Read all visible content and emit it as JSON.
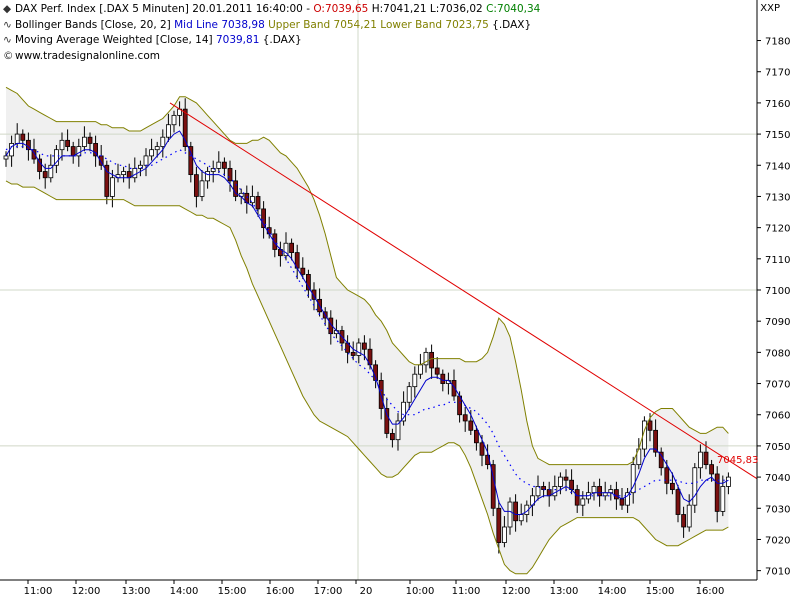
{
  "legend": {
    "line1": {
      "symbol": "◆",
      "name": "DAX Perf. Index [.DAX  5 Minuten]",
      "datetime": "20.01.2011 16:40:00",
      "open": "O:7039,65",
      "high": "H:7041,21",
      "low": "L:7036,02",
      "close": "C:7040,34"
    },
    "line2": {
      "symbol": "∿",
      "name": "Bollinger Bands [Close, 20, 2]",
      "mid": "Mid Line 7038,98",
      "upper": "Upper Band 7054,21",
      "lower": "Lower Band 7023,75",
      "suffix": "{.DAX}"
    },
    "line3": {
      "symbol": "∿",
      "name": "Moving Average Weighted [Close, 14]",
      "value": "7039,81",
      "suffix": "{.DAX}"
    },
    "line4": {
      "symbol": "©",
      "text": "www.tradesignalonline.com"
    }
  },
  "corner_label": "XXP",
  "colors": {
    "up_candle": "#ffffff",
    "down_candle": "#7a1010",
    "band": "#808000",
    "band_fill": "#f0f0f0",
    "wma": "#0000cc",
    "mid_line": "#0000ff",
    "trendline": "#e00000",
    "grid": "#d0d8c8",
    "open_red": "#cc0000",
    "close_green": "#008000"
  },
  "chart_data": {
    "type": "candlestick",
    "ylim": [
      7007,
      7193
    ],
    "y_ticks": [
      7010,
      7020,
      7030,
      7040,
      7050,
      7060,
      7070,
      7080,
      7090,
      7100,
      7110,
      7120,
      7130,
      7140,
      7150,
      7160,
      7170,
      7180
    ],
    "x_ticks": [
      "11:00",
      "12:00",
      "13:00",
      "14:00",
      "15:00",
      "16:00",
      "17:00",
      "20",
      "10:00",
      "11:00",
      "12:00",
      "13:00",
      "14:00",
      "15:00",
      "16:00"
    ],
    "trendline": [
      [
        7160,
        7039.5
      ]
    ],
    "last_label": "7045,83",
    "closes": [
      7143,
      7147,
      7150,
      7148,
      7145,
      7142,
      7138,
      7136,
      7140,
      7145,
      7148,
      7146,
      7143,
      7146,
      7149,
      7147,
      7143,
      7140,
      7130,
      7136,
      7137,
      7138,
      7136,
      7139,
      7140,
      7143,
      7145,
      7146,
      7149,
      7153,
      7156,
      7158,
      7146,
      7137,
      7130,
      7135,
      7138,
      7139,
      7141,
      7139,
      7135,
      7130,
      7131,
      7128,
      7130,
      7126,
      7120,
      7118,
      7113,
      7111,
      7115,
      7112,
      7107,
      7105,
      7100,
      7097,
      7093,
      7091,
      7086,
      7087,
      7083,
      7080,
      7079,
      7083,
      7081,
      7076,
      7071,
      7062,
      7054,
      7052,
      7058,
      7064,
      7069,
      7073,
      7076,
      7080,
      7075,
      7073,
      7070,
      7071,
      7066,
      7060,
      7058,
      7055,
      7051,
      7047,
      7044,
      7030,
      7019,
      7024,
      7032,
      7026,
      7028,
      7031,
      7034,
      7037,
      7036,
      7034,
      7037,
      7040,
      7039,
      7036,
      7031,
      7033,
      7035,
      7037,
      7034,
      7035,
      7036,
      7033,
      7031,
      7035,
      7044,
      7049,
      7058,
      7055,
      7048,
      7043,
      7038,
      7036,
      7028,
      7024,
      7031,
      7043,
      7048,
      7044,
      7041,
      7029,
      7037,
      7040
    ],
    "wma": [
      7143,
      7146,
      7147,
      7147,
      7146,
      7144,
      7141,
      7139,
      7139,
      7141,
      7143,
      7143,
      7143,
      7144,
      7145,
      7145,
      7144,
      7141,
      7138,
      7137,
      7136,
      7136,
      7136,
      7137,
      7138,
      7139,
      7141,
      7143,
      7145,
      7148,
      7150,
      7151,
      7148,
      7144,
      7140,
      7138,
      7137,
      7137,
      7137,
      7136,
      7134,
      7131,
      7130,
      7128,
      7127,
      7124,
      7121,
      7118,
      7115,
      7113,
      7112,
      7110,
      7107,
      7104,
      7101,
      7098,
      7095,
      7092,
      7089,
      7087,
      7085,
      7083,
      7081,
      7080,
      7079,
      7076,
      7072,
      7066,
      7060,
      7057,
      7057,
      7059,
      7062,
      7065,
      7068,
      7071,
      7072,
      7072,
      7071,
      7071,
      7069,
      7066,
      7063,
      7060,
      7056,
      7052,
      7048,
      7040,
      7032,
      7029,
      7029,
      7028,
      7028,
      7029,
      7031,
      7033,
      7034,
      7034,
      7035,
      7036,
      7037,
      7036,
      7034,
      7034,
      7034,
      7035,
      7035,
      7035,
      7035,
      7034,
      7033,
      7034,
      7037,
      7041,
      7046,
      7049,
      7049,
      7047,
      7044,
      7041,
      7037,
      7033,
      7032,
      7034,
      7037,
      7039,
      7040,
      7038,
      7038,
      7039
    ],
    "mid_line": [
      7145,
      7146,
      7146,
      7146,
      7145,
      7145,
      7144,
      7143,
      7143,
      7143,
      7143,
      7143,
      7143,
      7143,
      7144,
      7144,
      7144,
      7143,
      7142,
      7141,
      7140,
      7140,
      7139,
      7139,
      7139,
      7140,
      7140,
      7141,
      7142,
      7143,
      7144,
      7145,
      7144,
      7143,
      7142,
      7141,
      7140,
      7139,
      7138,
      7137,
      7136,
      7134,
      7132,
      7130,
      7128,
      7125,
      7122,
      7119,
      7116,
      7113,
      7110,
      7107,
      7104,
      7101,
      7098,
      7095,
      7092,
      7089,
      7086,
      7084,
      7082,
      7080,
      7078,
      7076,
      7075,
      7073,
      7071,
      7068,
      7065,
      7063,
      7061,
      7060,
      7060,
      7060,
      7061,
      7062,
      7062,
      7063,
      7063,
      7064,
      7064,
      7064,
      7063,
      7062,
      7061,
      7059,
      7057,
      7054,
      7050,
      7047,
      7044,
      7041,
      7039,
      7038,
      7037,
      7037,
      7036,
      7036,
      7036,
      7036,
      7036,
      7035,
      7034,
      7034,
      7034,
      7034,
      7034,
      7034,
      7034,
      7034,
      7034,
      7034,
      7035,
      7036,
      7037,
      7038,
      7039,
      7039,
      7039,
      7039,
      7039,
      7038,
      7038,
      7038,
      7039,
      7039,
      7039,
      7039,
      7039,
      7039
    ],
    "upper_band": [
      7165,
      7164,
      7163,
      7161,
      7159,
      7158,
      7157,
      7156,
      7155,
      7154,
      7154,
      7154,
      7154,
      7154,
      7154,
      7154,
      7154,
      7153,
      7153,
      7152,
      7152,
      7152,
      7151,
      7151,
      7151,
      7152,
      7153,
      7154,
      7155,
      7157,
      7159,
      7162,
      7162,
      7161,
      7160,
      7158,
      7156,
      7154,
      7152,
      7150,
      7148,
      7147,
      7147,
      7147,
      7148,
      7148,
      7149,
      7148,
      7146,
      7144,
      7143,
      7141,
      7139,
      7136,
      7133,
      7129,
      7124,
      7118,
      7111,
      7104,
      7102,
      7100,
      7099,
      7098,
      7097,
      7095,
      7092,
      7090,
      7087,
      7083,
      7081,
      7079,
      7077,
      7076,
      7076,
      7077,
      7078,
      7078,
      7078,
      7078,
      7078,
      7078,
      7077,
      7077,
      7077,
      7078,
      7080,
      7085,
      7091,
      7089,
      7085,
      7077,
      7068,
      7058,
      7050,
      7046,
      7045,
      7044,
      7044,
      7044,
      7044,
      7044,
      7044,
      7044,
      7044,
      7044,
      7044,
      7044,
      7044,
      7044,
      7044,
      7044,
      7045,
      7049,
      7055,
      7059,
      7061,
      7062,
      7062,
      7062,
      7060,
      7058,
      7056,
      7055,
      7054,
      7054,
      7055,
      7056,
      7056,
      7054
    ],
    "lower_band": [
      7135,
      7134,
      7134,
      7133,
      7133,
      7133,
      7132,
      7131,
      7130,
      7129,
      7129,
      7129,
      7129,
      7129,
      7129,
      7129,
      7129,
      7129,
      7129,
      7129,
      7129,
      7129,
      7128,
      7127,
      7127,
      7127,
      7127,
      7127,
      7127,
      7127,
      7127,
      7127,
      7126,
      7125,
      7124,
      7124,
      7123,
      7123,
      7122,
      7121,
      7120,
      7116,
      7111,
      7107,
      7102,
      7098,
      7094,
      7090,
      7086,
      7082,
      7078,
      7074,
      7070,
      7066,
      7063,
      7060,
      7058,
      7057,
      7056,
      7055,
      7054,
      7053,
      7051,
      7049,
      7047,
      7045,
      7043,
      7041,
      7040,
      7040,
      7041,
      7043,
      7045,
      7047,
      7048,
      7048,
      7048,
      7049,
      7050,
      7051,
      7051,
      7050,
      7047,
      7043,
      7038,
      7033,
      7028,
      7022,
      7017,
      7012,
      7010,
      7009,
      7009,
      7009,
      7011,
      7014,
      7017,
      7020,
      7022,
      7024,
      7025,
      7026,
      7027,
      7027,
      7027,
      7027,
      7027,
      7027,
      7027,
      7027,
      7027,
      7027,
      7027,
      7026,
      7024,
      7022,
      7020,
      7019,
      7018,
      7018,
      7018,
      7019,
      7020,
      7021,
      7022,
      7023,
      7023,
      7023,
      7023,
      7024
    ]
  }
}
